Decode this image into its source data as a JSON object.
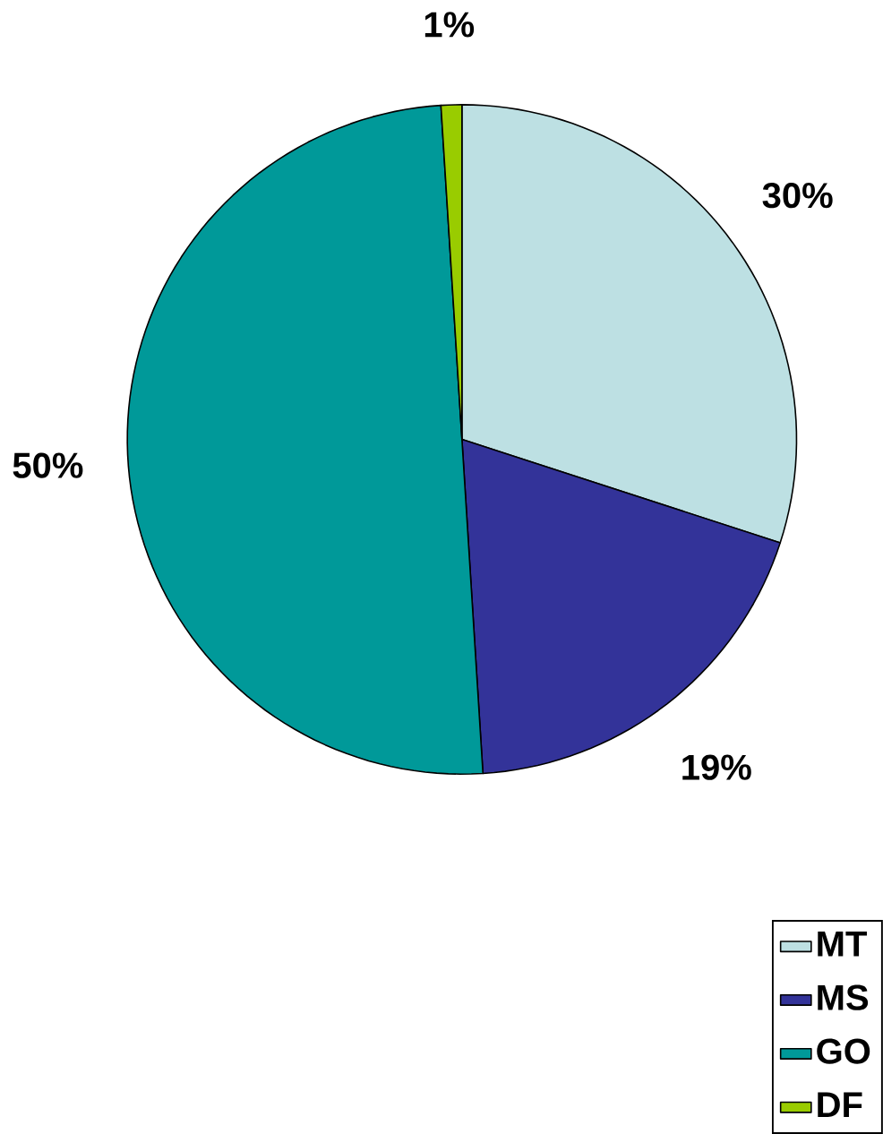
{
  "chart_data": {
    "type": "pie",
    "categories": [
      "MT",
      "MS",
      "GO",
      "DF"
    ],
    "values": [
      30,
      19,
      50,
      1
    ],
    "colors": [
      "#bde0e3",
      "#333399",
      "#009999",
      "#99cc00"
    ],
    "value_labels": [
      "30%",
      "19%",
      "50%",
      "1%"
    ],
    "legend": "bottom right"
  }
}
